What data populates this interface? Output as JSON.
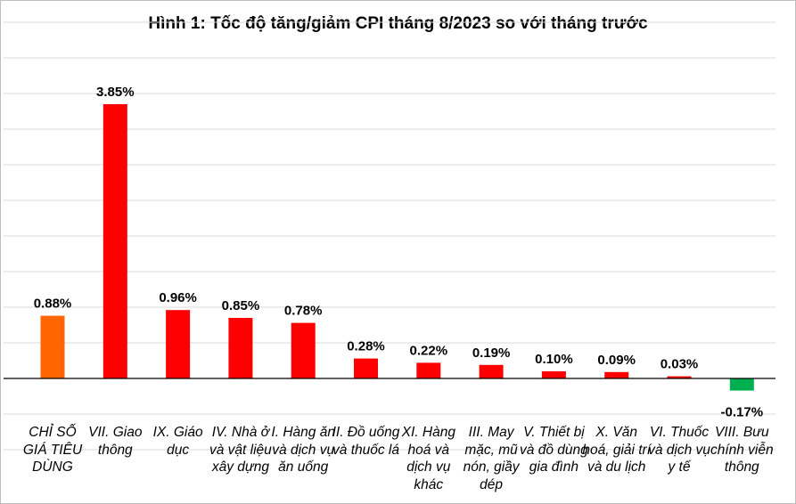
{
  "chart_data": {
    "type": "bar",
    "title": "Hình 1: Tốc độ tăng/giảm CPI tháng 8/2023 so với tháng trước",
    "xlabel": "",
    "ylabel": "",
    "ylim": [
      -1,
      5
    ],
    "grid": true,
    "legend": "none",
    "categories": [
      "CHỈ SỐ GIÁ TIÊU DÙNG",
      "VII. Giao thông",
      "IX. Giáo dục",
      "IV. Nhà ở và vật liệu xây dựng",
      "I. Hàng ăn và dịch vụ ăn uống",
      "II. Đồ uống và thuốc lá",
      "XI. Hàng hoá và dịch vụ khác",
      "III. May mặc, mũ nón, giầy dép",
      "V. Thiết bị và đồ dùng gia đình",
      "X. Văn hoá, giải trí và du lịch",
      "VI. Thuốc và dịch vụ y tế",
      "VIII. Bưu chính viễn thông"
    ],
    "values": [
      0.88,
      3.85,
      0.96,
      0.85,
      0.78,
      0.28,
      0.22,
      0.19,
      0.1,
      0.09,
      0.03,
      -0.17
    ],
    "value_labels": [
      "0.88%",
      "3.85%",
      "0.96%",
      "0.85%",
      "0.78%",
      "0.28%",
      "0.22%",
      "0.19%",
      "0.10%",
      "0.09%",
      "0.03%",
      "-0.17%"
    ],
    "colors": {
      "overall": "#ff6600",
      "increase": "#ff0000",
      "decrease": "#00b050",
      "grid": "#d9d9d9",
      "axis": "#000000"
    }
  }
}
